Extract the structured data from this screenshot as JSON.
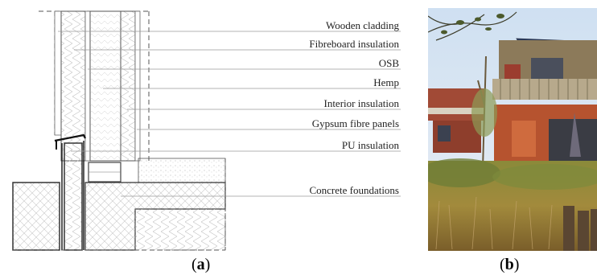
{
  "figure": {
    "labels": [
      "Wooden cladding",
      "Fibreboard insulation",
      "OSB",
      "Hemp",
      "Interior insulation",
      "Gypsum fibre panels",
      "PU insulation",
      "Concrete foundations"
    ],
    "caption_a": {
      "open": "(",
      "letter": "a",
      "close": ")"
    },
    "caption_b": {
      "open": "(",
      "letter": "b",
      "close": ")"
    }
  }
}
